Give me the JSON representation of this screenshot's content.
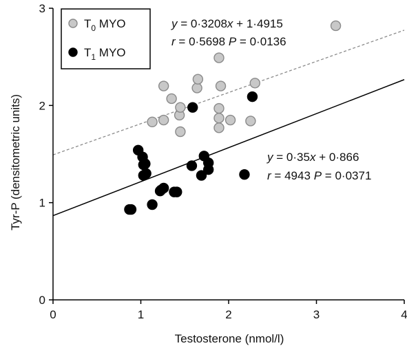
{
  "chart_data": {
    "type": "scatter",
    "xlabel": "Testosterone (nmol/l)",
    "ylabel": "Tyr-P (densitometric units)",
    "xlim": [
      0,
      4
    ],
    "ylim": [
      0,
      3
    ],
    "x_ticks": [
      "0",
      "1",
      "2",
      "3",
      "4"
    ],
    "y_ticks": [
      "0",
      "1",
      "2",
      "3"
    ],
    "grid": false,
    "legend_position": "top-left",
    "series": [
      {
        "name_base": "T",
        "name_sub": "0",
        "name_rest": " MYO",
        "color": "#c8c8c8",
        "stroke": "#8a8a8a",
        "points": [
          [
            1.13,
            1.83
          ],
          [
            1.26,
            2.2
          ],
          [
            1.26,
            1.85
          ],
          [
            1.35,
            2.07
          ],
          [
            1.44,
            1.9
          ],
          [
            1.45,
            1.98
          ],
          [
            1.45,
            1.73
          ],
          [
            1.64,
            2.18
          ],
          [
            1.65,
            2.27
          ],
          [
            1.89,
            2.49
          ],
          [
            1.89,
            1.97
          ],
          [
            1.89,
            1.87
          ],
          [
            1.89,
            1.77
          ],
          [
            1.91,
            2.2
          ],
          [
            2.02,
            1.85
          ],
          [
            2.25,
            1.84
          ],
          [
            2.3,
            2.23
          ],
          [
            3.22,
            2.82
          ]
        ],
        "fit": {
          "slope": 0.3208,
          "intercept": 1.4915,
          "style": "dashed"
        },
        "annotation": {
          "line1": "y = 0·3208x + 1·4915",
          "line2": "r = 0·5698   P = 0·0136"
        }
      },
      {
        "name_base": "T",
        "name_sub": "1",
        "name_rest": " MYO",
        "color": "#000000",
        "stroke": "#000000",
        "points": [
          [
            0.87,
            0.93
          ],
          [
            0.89,
            0.93
          ],
          [
            0.97,
            1.54
          ],
          [
            1.02,
            1.47
          ],
          [
            1.03,
            1.39
          ],
          [
            1.03,
            1.28
          ],
          [
            1.05,
            1.4
          ],
          [
            1.06,
            1.3
          ],
          [
            1.13,
            0.98
          ],
          [
            1.22,
            1.12
          ],
          [
            1.23,
            1.13
          ],
          [
            1.26,
            1.15
          ],
          [
            1.38,
            1.11
          ],
          [
            1.41,
            1.11
          ],
          [
            1.58,
            1.38
          ],
          [
            1.59,
            1.98
          ],
          [
            1.69,
            1.28
          ],
          [
            1.72,
            1.48
          ],
          [
            1.77,
            1.41
          ],
          [
            1.77,
            1.34
          ],
          [
            2.18,
            1.29
          ],
          [
            2.27,
            2.09
          ]
        ],
        "fit": {
          "slope": 0.35,
          "intercept": 0.866,
          "style": "solid"
        },
        "annotation": {
          "line1": "y = 0·35x + 0·866",
          "line2": "r = 4943   P = 0·0371"
        }
      }
    ]
  }
}
